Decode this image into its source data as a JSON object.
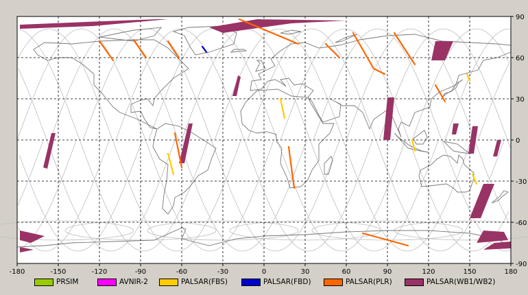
{
  "map": {
    "x_ticks": [
      "-180",
      "-150",
      "-120",
      "-90",
      "-60",
      "-30",
      "0",
      "30",
      "60",
      "90",
      "120",
      "150",
      "180"
    ],
    "y_ticks": [
      "90",
      "60",
      "30",
      "0",
      "-30",
      "-60",
      "-90"
    ],
    "x_range": [
      -180,
      180
    ],
    "y_range": [
      -90,
      90
    ],
    "grid": "dashed",
    "colors": {
      "background": "#ffffff",
      "frame": "#d4d0c8",
      "coast": "#777777",
      "orbit": "#bdbdbd"
    }
  },
  "legend": {
    "items": [
      {
        "label": "PRSIM",
        "color": "#99cc00"
      },
      {
        "label": "AVNIR-2",
        "color": "#ff00ff"
      },
      {
        "label": "PALSAR(FBS)",
        "color": "#ffcc00"
      },
      {
        "label": "PALSAR(FBD)",
        "color": "#0000cc"
      },
      {
        "label": "PALSAR(PLR)",
        "color": "#ff6600"
      },
      {
        "label": "PALSAR(WB1/WB2)",
        "color": "#993366"
      }
    ]
  },
  "chart_data": {
    "type": "map",
    "x_range": [
      -180,
      180
    ],
    "y_range": [
      -90,
      90
    ],
    "series": [
      {
        "name": "PALSAR(WB1/WB2)",
        "color": "#993366",
        "swaths": [
          [
            [
              -178,
              84
            ],
            [
              -130,
              86
            ],
            [
              -78,
              88
            ],
            [
              -70,
              88
            ],
            [
              -125,
              83
            ],
            [
              -178,
              81
            ]
          ],
          [
            [
              -40,
              82
            ],
            [
              -5,
              88
            ],
            [
              60,
              87
            ],
            [
              20,
              85
            ],
            [
              -30,
              78
            ]
          ],
          [
            [
              -19,
              47
            ],
            [
              -17,
              46
            ],
            [
              -20,
              32
            ],
            [
              -23,
              32
            ]
          ],
          [
            [
              -55,
              12
            ],
            [
              -52,
              12
            ],
            [
              -58,
              -17
            ],
            [
              -62,
              -17
            ]
          ],
          [
            [
              -155,
              5
            ],
            [
              -152,
              5
            ],
            [
              -158,
              -21
            ],
            [
              -161,
              -20
            ]
          ],
          [
            [
              -178,
              -66
            ],
            [
              -160,
              -70
            ],
            [
              -170,
              -75
            ],
            [
              -178,
              -73
            ]
          ],
          [
            [
              -178,
              -78
            ],
            [
              -168,
              -80
            ],
            [
              -178,
              -82
            ]
          ],
          [
            [
              125,
              72
            ],
            [
              138,
              72
            ],
            [
              132,
              58
            ],
            [
              122,
              58
            ]
          ],
          [
            [
              90,
              31
            ],
            [
              95,
              31
            ],
            [
              92,
              0
            ],
            [
              87,
              0
            ]
          ],
          [
            [
              138,
              12
            ],
            [
              142,
              12
            ],
            [
              140,
              4
            ],
            [
              137,
              4
            ]
          ],
          [
            [
              152,
              10
            ],
            [
              156,
              10
            ],
            [
              153,
              -10
            ],
            [
              149,
              -10
            ]
          ],
          [
            [
              170,
              0
            ],
            [
              173,
              0
            ],
            [
              170,
              -12
            ],
            [
              167,
              -12
            ]
          ],
          [
            [
              160,
              -32
            ],
            [
              168,
              -32
            ],
            [
              158,
              -57
            ],
            [
              150,
              -57
            ]
          ],
          [
            [
              160,
              -66
            ],
            [
              175,
              -67
            ],
            [
              178,
              -73
            ],
            [
              155,
              -75
            ]
          ],
          [
            [
              168,
              -75
            ],
            [
              180,
              -74
            ],
            [
              180,
              -79
            ],
            [
              160,
              -80
            ]
          ]
        ]
      },
      {
        "name": "PALSAR(PLR)",
        "color": "#ff6600",
        "tracks": [
          [
            [
              -120,
              72
            ],
            [
              -110,
              58
            ]
          ],
          [
            [
              -95,
              73
            ],
            [
              -86,
              60
            ]
          ],
          [
            [
              -70,
              72
            ],
            [
              -62,
              60
            ]
          ],
          [
            [
              -65,
              5
            ],
            [
              -60,
              -20
            ]
          ],
          [
            [
              -18,
              88
            ],
            [
              25,
              70
            ]
          ],
          [
            [
              18,
              -5
            ],
            [
              22,
              -35
            ]
          ],
          [
            [
              45,
              70
            ],
            [
              55,
              60
            ]
          ],
          [
            [
              65,
              78
            ],
            [
              80,
              52
            ],
            [
              88,
              48
            ]
          ],
          [
            [
              95,
              78
            ],
            [
              110,
              55
            ]
          ],
          [
            [
              125,
              40
            ],
            [
              132,
              28
            ]
          ],
          [
            [
              72,
              -68
            ],
            [
              105,
              -77
            ]
          ]
        ]
      },
      {
        "name": "PALSAR(FBS)",
        "color": "#ffcc00",
        "tracks": [
          [
            [
              12,
              30
            ],
            [
              15,
              16
            ]
          ],
          [
            [
              148,
              48
            ],
            [
              150,
              43
            ]
          ],
          [
            [
              108,
              0
            ],
            [
              110,
              -8
            ]
          ],
          [
            [
              152,
              -25
            ],
            [
              155,
              -32
            ]
          ],
          [
            [
              -70,
              -10
            ],
            [
              -66,
              -25
            ]
          ]
        ]
      },
      {
        "name": "PALSAR(FBD)",
        "color": "#0000cc",
        "tracks": [
          [
            [
              -45,
              68
            ],
            [
              -42,
              64
            ]
          ]
        ]
      }
    ]
  }
}
